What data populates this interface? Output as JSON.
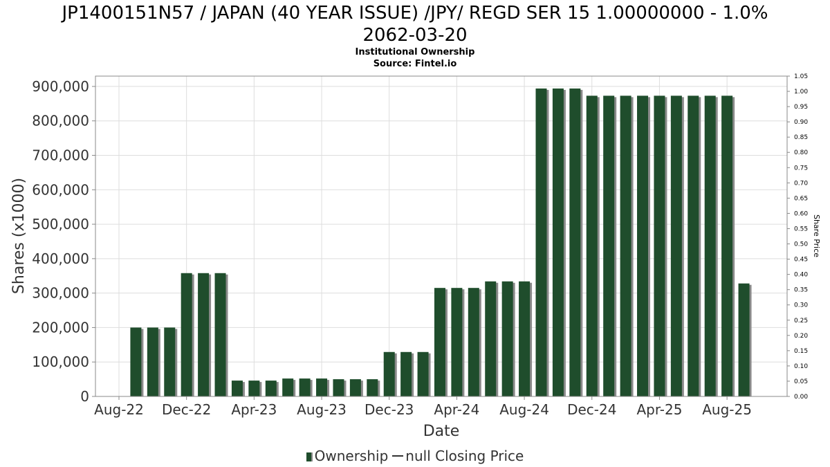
{
  "chart_data": {
    "type": "bar",
    "title_line1": "JP1400151N57 / JAPAN (40 YEAR ISSUE) /JPY/ REGD SER 15 1.00000000 - 1.0%",
    "title_line2": "2062-03-20",
    "subtitle1": "Institutional Ownership",
    "subtitle2": "Source: Fintel.io",
    "xlabel": "Date",
    "ylabel": "Shares (x1000)",
    "y2label": "Share Price",
    "ylim": [
      0,
      930000
    ],
    "y2lim": [
      0,
      1.05
    ],
    "yticks": [
      0,
      100000,
      200000,
      300000,
      400000,
      500000,
      600000,
      700000,
      800000,
      900000
    ],
    "ytick_labels": [
      "0",
      "100,000",
      "200,000",
      "300,000",
      "400,000",
      "500,000",
      "600,000",
      "700,000",
      "800,000",
      "900,000"
    ],
    "y2tick_labels": [
      "0.00",
      "0.05",
      "0.10",
      "0.15",
      "0.20",
      "0.25",
      "0.30",
      "0.35",
      "0.40",
      "0.45",
      "0.50",
      "0.55",
      "0.60",
      "0.65",
      "0.70",
      "0.75",
      "0.80",
      "0.85",
      "0.90",
      "0.95",
      "1.00",
      "1.05"
    ],
    "x_tick_labels": [
      "Aug-22",
      "Dec-22",
      "Apr-23",
      "Aug-23",
      "Dec-23",
      "Apr-24",
      "Aug-24",
      "Dec-24",
      "Apr-25",
      "Aug-25"
    ],
    "categories": [
      "2022-09",
      "2022-10",
      "2022-11",
      "2022-12",
      "2023-01",
      "2023-02",
      "2023-03",
      "2023-04",
      "2023-05",
      "2023-06",
      "2023-07",
      "2023-08",
      "2023-09",
      "2023-10",
      "2023-11",
      "2023-12",
      "2024-01",
      "2024-02",
      "2024-03",
      "2024-04",
      "2024-05",
      "2024-06",
      "2024-07",
      "2024-08",
      "2024-09",
      "2024-10",
      "2024-11",
      "2024-12",
      "2025-01",
      "2025-02",
      "2025-03",
      "2025-04",
      "2025-05",
      "2025-06",
      "2025-07",
      "2025-08",
      "2025-09"
    ],
    "values": [
      200000,
      200000,
      200000,
      358000,
      358000,
      358000,
      46000,
      46000,
      46000,
      52000,
      52000,
      52000,
      50000,
      50000,
      50000,
      129000,
      129000,
      129000,
      315000,
      315000,
      315000,
      334000,
      334000,
      334000,
      894000,
      894000,
      894000,
      873000,
      873000,
      873000,
      873000,
      873000,
      873000,
      873000,
      873000,
      873000,
      328000
    ],
    "series": [
      {
        "name": "Ownership",
        "type": "bar"
      },
      {
        "name": "null Closing Price",
        "type": "line"
      }
    ],
    "grid": true,
    "legend_position": "bottom-center",
    "colors": {
      "bar": "#1f4d2c",
      "bar_shadow": "#8a8a8a",
      "grid": "#dddddd",
      "axis": "#888888"
    }
  }
}
